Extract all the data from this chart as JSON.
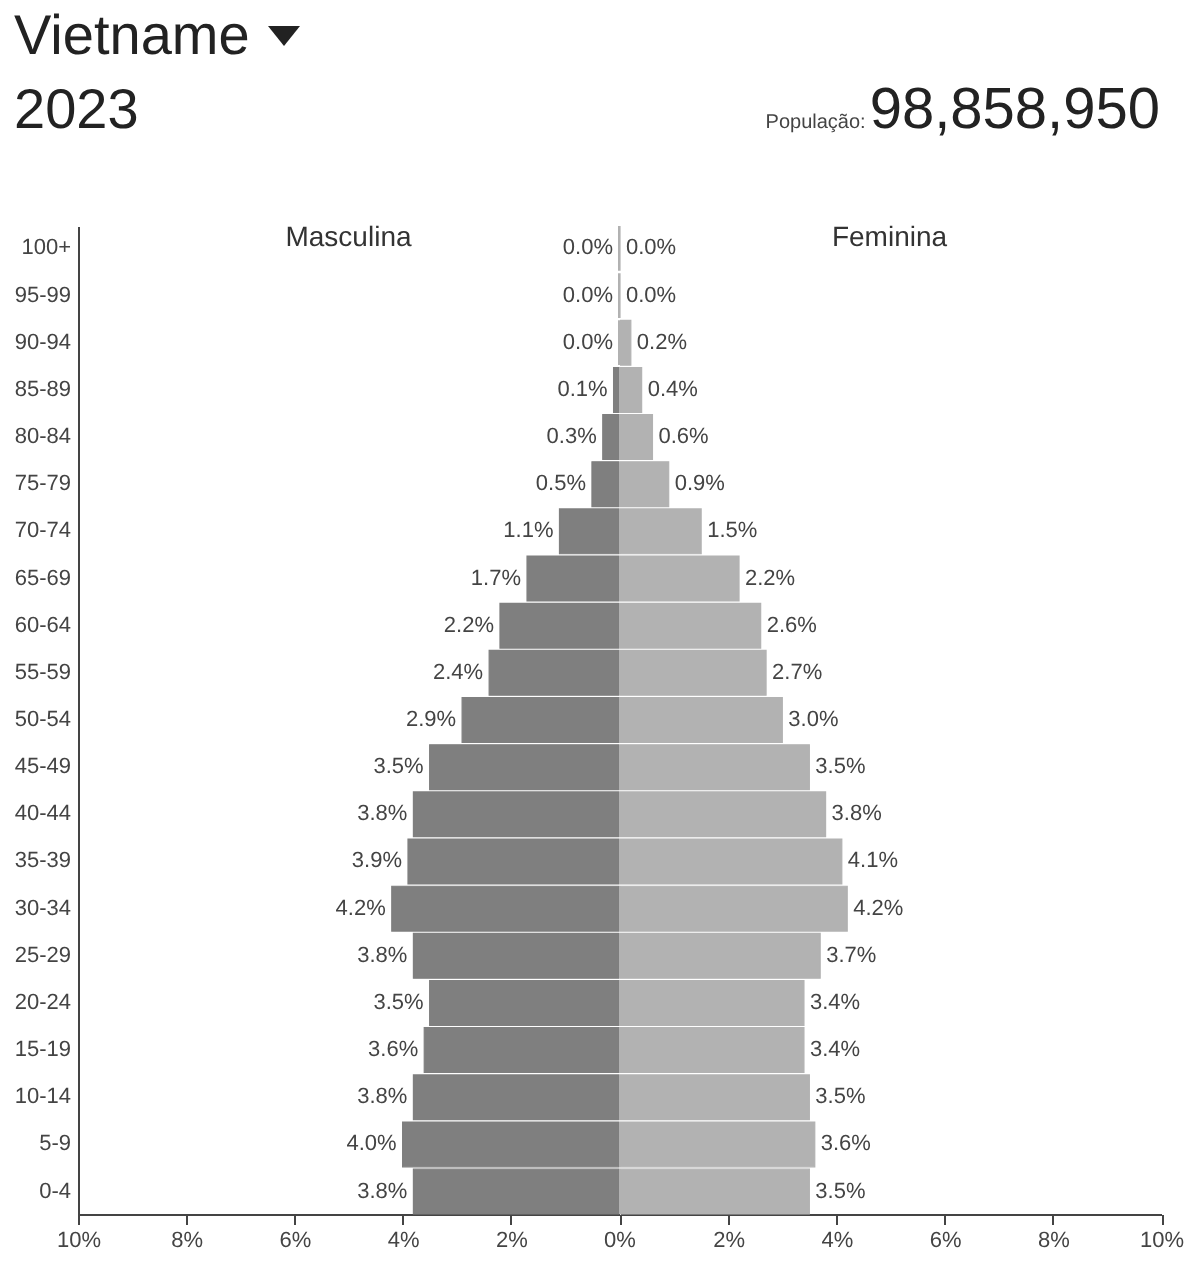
{
  "chart_data": [
    {
      "type": "other",
      "title": "Vietname",
      "subtitle": "2023",
      "annotations": [
        "População:",
        "98,858,950"
      ]
    },
    {
      "type": "bar",
      "orientation": "horizontal",
      "title": "Masculina",
      "categories": [
        "100+",
        "95-99",
        "90-94",
        "85-89",
        "80-84",
        "75-79",
        "70-74",
        "65-69",
        "60-64",
        "55-59",
        "50-54",
        "45-49",
        "40-44",
        "35-39",
        "30-34",
        "25-29",
        "20-24",
        "15-19",
        "10-14",
        "5-9",
        "0-4"
      ],
      "values": [
        0,
        0,
        0,
        0.1,
        0.3,
        0.5,
        1.1,
        1.7,
        2.2,
        2.4,
        2.9,
        3.5,
        3.8,
        3.9,
        4.2,
        3.8,
        3.5,
        3.6,
        3.8,
        4.0,
        3.8
      ],
      "color": "#7f7f7f",
      "value_labels": [
        "0.0%",
        "0.0%",
        "0.0%",
        "0.1%",
        "0.3%",
        "0.5%",
        "1.1%",
        "1.7%",
        "2.2%",
        "2.4%",
        "2.9%",
        "3.5%",
        "3.8%",
        "3.9%",
        "4.2%",
        "3.8%",
        "3.5%",
        "3.6%",
        "3.8%",
        "4.0%",
        "3.8%"
      ],
      "xlim": [
        10,
        0
      ],
      "xticks": [
        {
          "value": 10,
          "label": "10%"
        },
        {
          "value": 8,
          "label": "8%"
        },
        {
          "value": 6,
          "label": "6%"
        },
        {
          "value": 4,
          "label": "4%"
        },
        {
          "value": 2,
          "label": "2%"
        },
        {
          "value": 0,
          "label": "0%"
        }
      ]
    },
    {
      "type": "bar",
      "orientation": "horizontal",
      "title": "Feminina",
      "categories": [
        "100+",
        "95-99",
        "90-94",
        "85-89",
        "80-84",
        "75-79",
        "70-74",
        "65-69",
        "60-64",
        "55-59",
        "50-54",
        "45-49",
        "40-44",
        "35-39",
        "30-34",
        "25-29",
        "20-24",
        "15-19",
        "10-14",
        "5-9",
        "0-4"
      ],
      "values": [
        0,
        0,
        0.2,
        0.4,
        0.6,
        0.9,
        1.5,
        2.2,
        2.6,
        2.7,
        3.0,
        3.5,
        3.8,
        4.1,
        4.2,
        3.7,
        3.4,
        3.4,
        3.5,
        3.6,
        3.5
      ],
      "color": "#b2b2b2",
      "value_labels": [
        "0.0%",
        "0.0%",
        "0.2%",
        "0.4%",
        "0.6%",
        "0.9%",
        "1.5%",
        "2.2%",
        "2.6%",
        "2.7%",
        "3.0%",
        "3.5%",
        "3.8%",
        "4.1%",
        "4.2%",
        "3.7%",
        "3.4%",
        "3.4%",
        "3.5%",
        "3.6%",
        "3.5%"
      ],
      "xlim": [
        0,
        10
      ],
      "xticks": [
        {
          "value": 0,
          "label": null
        },
        {
          "value": 2,
          "label": "2%"
        },
        {
          "value": 4,
          "label": "4%"
        },
        {
          "value": 6,
          "label": "6%"
        },
        {
          "value": 8,
          "label": "8%"
        },
        {
          "value": 10,
          "label": "10%"
        }
      ],
      "tick_labels": "x"
    }
  ]
}
